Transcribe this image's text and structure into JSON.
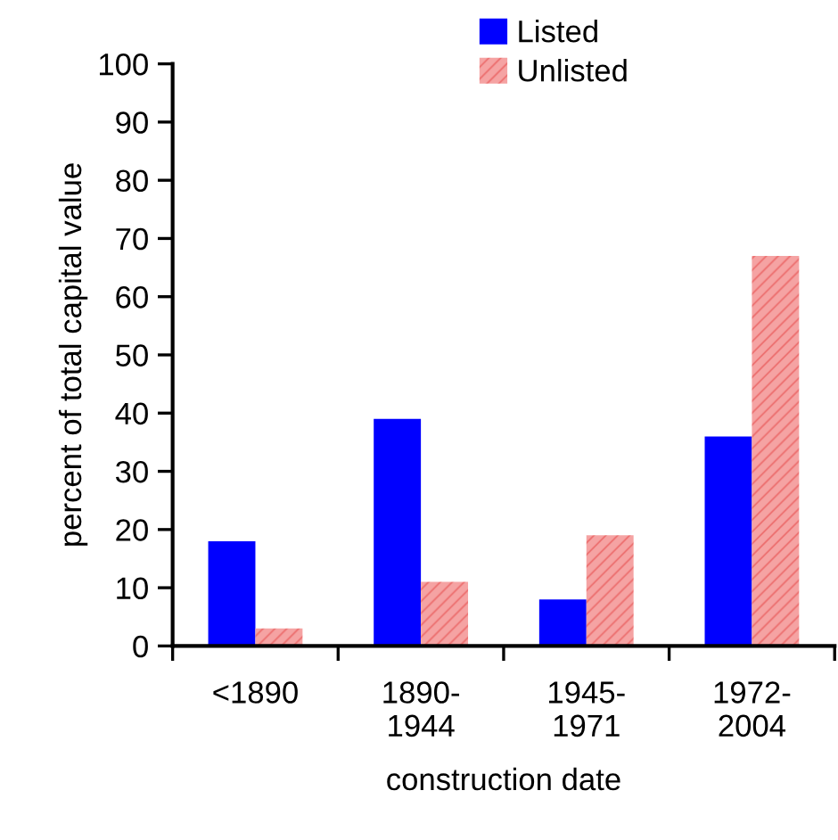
{
  "chart_data": {
    "type": "bar",
    "xlabel": "construction date",
    "ylabel": "percent of total capital value",
    "categories": [
      "<1890",
      "1890-\n1944",
      "1945-\n1971",
      "1972-\n2004"
    ],
    "series": [
      {
        "name": "Listed",
        "color": "#0000ff",
        "values": [
          18,
          39,
          8,
          36
        ]
      },
      {
        "name": "Unlisted",
        "color": "#f5a3a3",
        "values": [
          3,
          11,
          19,
          67
        ]
      }
    ],
    "ylim": [
      0,
      100
    ],
    "yticks": [
      0,
      10,
      20,
      30,
      40,
      50,
      60,
      70,
      80,
      90,
      100
    ],
    "grid": false,
    "legend": "top right"
  }
}
